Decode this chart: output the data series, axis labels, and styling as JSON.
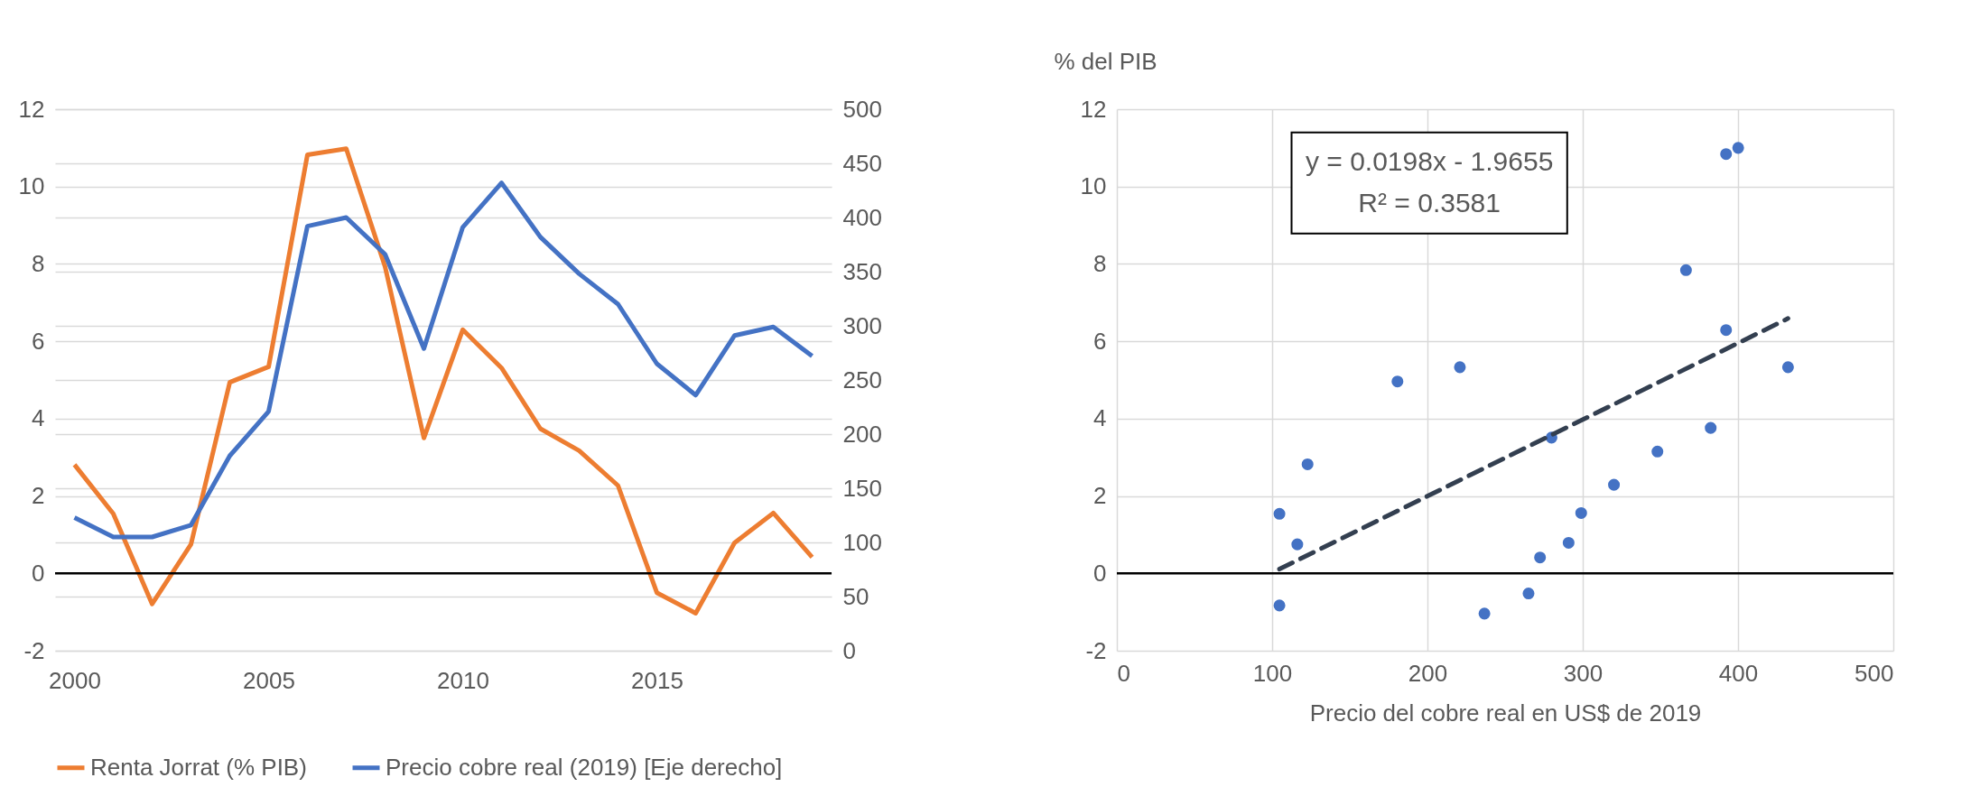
{
  "chart_data": [
    {
      "type": "line",
      "x": [
        2000,
        2001,
        2002,
        2003,
        2004,
        2005,
        2006,
        2007,
        2008,
        2009,
        2010,
        2011,
        2012,
        2013,
        2014,
        2015,
        2016,
        2017,
        2018,
        2019
      ],
      "series": [
        {
          "name": "Renta Jorrat (% PIB)",
          "color": "#ed7d31",
          "values": [
            2.81,
            1.54,
            -0.79,
            0.75,
            4.94,
            5.34,
            10.82,
            10.98,
            7.93,
            3.5,
            6.3,
            5.31,
            3.74,
            3.17,
            2.27,
            -0.5,
            -1.03,
            0.79,
            1.56,
            0.42
          ]
        },
        {
          "name": "Precio cobre real (2019) [Eje derecho]",
          "color": "#4472c4",
          "axis": "y2",
          "values": [
            123,
            105,
            105,
            116,
            180,
            221,
            392,
            400,
            366,
            279,
            391,
            432,
            382,
            348,
            320,
            265,
            236,
            291,
            299,
            272
          ]
        }
      ],
      "xlim": [
        1999.5,
        2019.5
      ],
      "xticks": [
        2000,
        2005,
        2010,
        2015
      ],
      "ylim": [
        -2,
        12
      ],
      "yticks": [
        -2,
        0,
        2,
        4,
        6,
        8,
        10,
        12
      ],
      "y2lim": [
        0,
        500
      ],
      "y2ticks": [
        0,
        50,
        100,
        150,
        200,
        250,
        300,
        350,
        400,
        450,
        500
      ],
      "ref_lines": [
        {
          "axis": "y",
          "value": 0,
          "color": "#000000"
        }
      ],
      "grid": "y",
      "legend": "bottom"
    },
    {
      "type": "scatter",
      "xlabel": "Precio del cobre real en US$ de 2019",
      "ylabel": "% del PIB",
      "series": [
        {
          "type": "scatter",
          "color": "#4472c4",
          "marker": "circle",
          "x": [
            104.7,
            116.2,
            122.8,
            104.7,
            180.7,
            220.9,
            236.7,
            265.1,
            272.5,
            279.9,
            290.9,
            299.0,
            320.1,
            348.1,
            366.5,
            382.4,
            392.3,
            392.3,
            400.1,
            432.2
          ],
          "values": [
            1.54,
            0.75,
            2.82,
            -0.83,
            4.96,
            5.33,
            -1.04,
            -0.52,
            0.41,
            3.51,
            0.79,
            1.56,
            2.29,
            3.15,
            7.84,
            3.76,
            6.29,
            10.84,
            11.0,
            5.33
          ]
        },
        {
          "type": "line",
          "color": "#333f50",
          "line_style": "dashed",
          "x": [
            104.7,
            432.2
          ],
          "values": [
            0.11,
            6.59
          ]
        }
      ],
      "xlim": [
        0,
        500
      ],
      "xticks": [
        0,
        100,
        200,
        300,
        400,
        500
      ],
      "ylim": [
        -2,
        12
      ],
      "yticks": [
        -2,
        0,
        2,
        4,
        6,
        8,
        10,
        12
      ],
      "ref_lines": [
        {
          "axis": "y",
          "value": 0,
          "color": "#000000"
        }
      ],
      "annotations": [
        "y = 0.0198x - 1.9655",
        "R² = 0.3581"
      ],
      "grid": true,
      "legend": false
    }
  ]
}
